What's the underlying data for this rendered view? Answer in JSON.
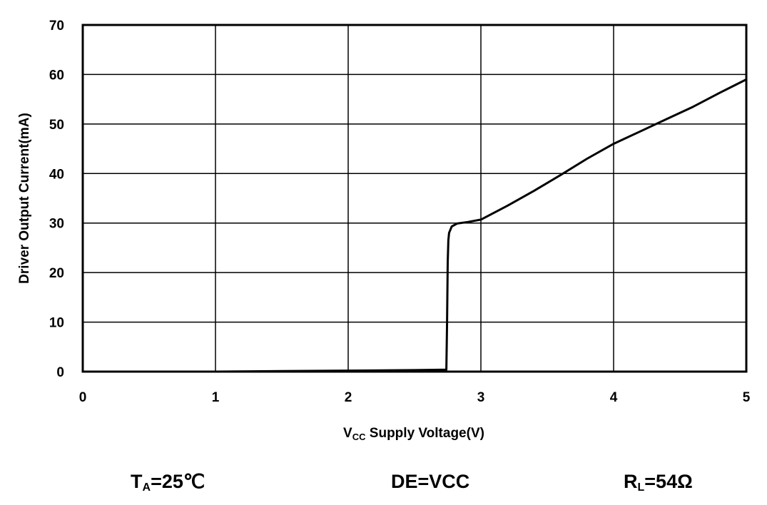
{
  "chart_data": {
    "type": "line",
    "xlabel": {
      "main": "V",
      "sub": "CC",
      "rest": " Supply Voltage(V)"
    },
    "ylabel": "Driver Output Current(mA)",
    "xlim": [
      0,
      5
    ],
    "ylim": [
      0,
      70
    ],
    "xticks": [
      0,
      1,
      2,
      3,
      4,
      5
    ],
    "yticks": [
      0,
      10,
      20,
      30,
      40,
      50,
      60,
      70
    ],
    "grid": true,
    "series": [
      {
        "color": "#000000",
        "x": [
          0,
          1,
          1.5,
          2,
          2.5,
          2.74,
          2.745,
          2.75,
          2.755,
          2.76,
          2.78,
          2.82,
          2.9,
          3.0,
          3.2,
          3.4,
          3.6,
          3.8,
          4.0,
          4.2,
          4.4,
          4.6,
          4.8,
          5.0
        ],
        "y": [
          0,
          0,
          0.1,
          0.2,
          0.3,
          0.4,
          10,
          22,
          26.5,
          28,
          29.3,
          29.9,
          30.2,
          30.7,
          33.5,
          36.5,
          39.7,
          43,
          46,
          48.5,
          51,
          53.5,
          56.3,
          59
        ]
      }
    ]
  },
  "conditions": {
    "ta": {
      "main": "T",
      "sub": "A",
      "rest": "=25℃"
    },
    "de": "DE=VCC",
    "rl": {
      "main": "R",
      "sub": "L",
      "rest": "=54Ω"
    }
  }
}
